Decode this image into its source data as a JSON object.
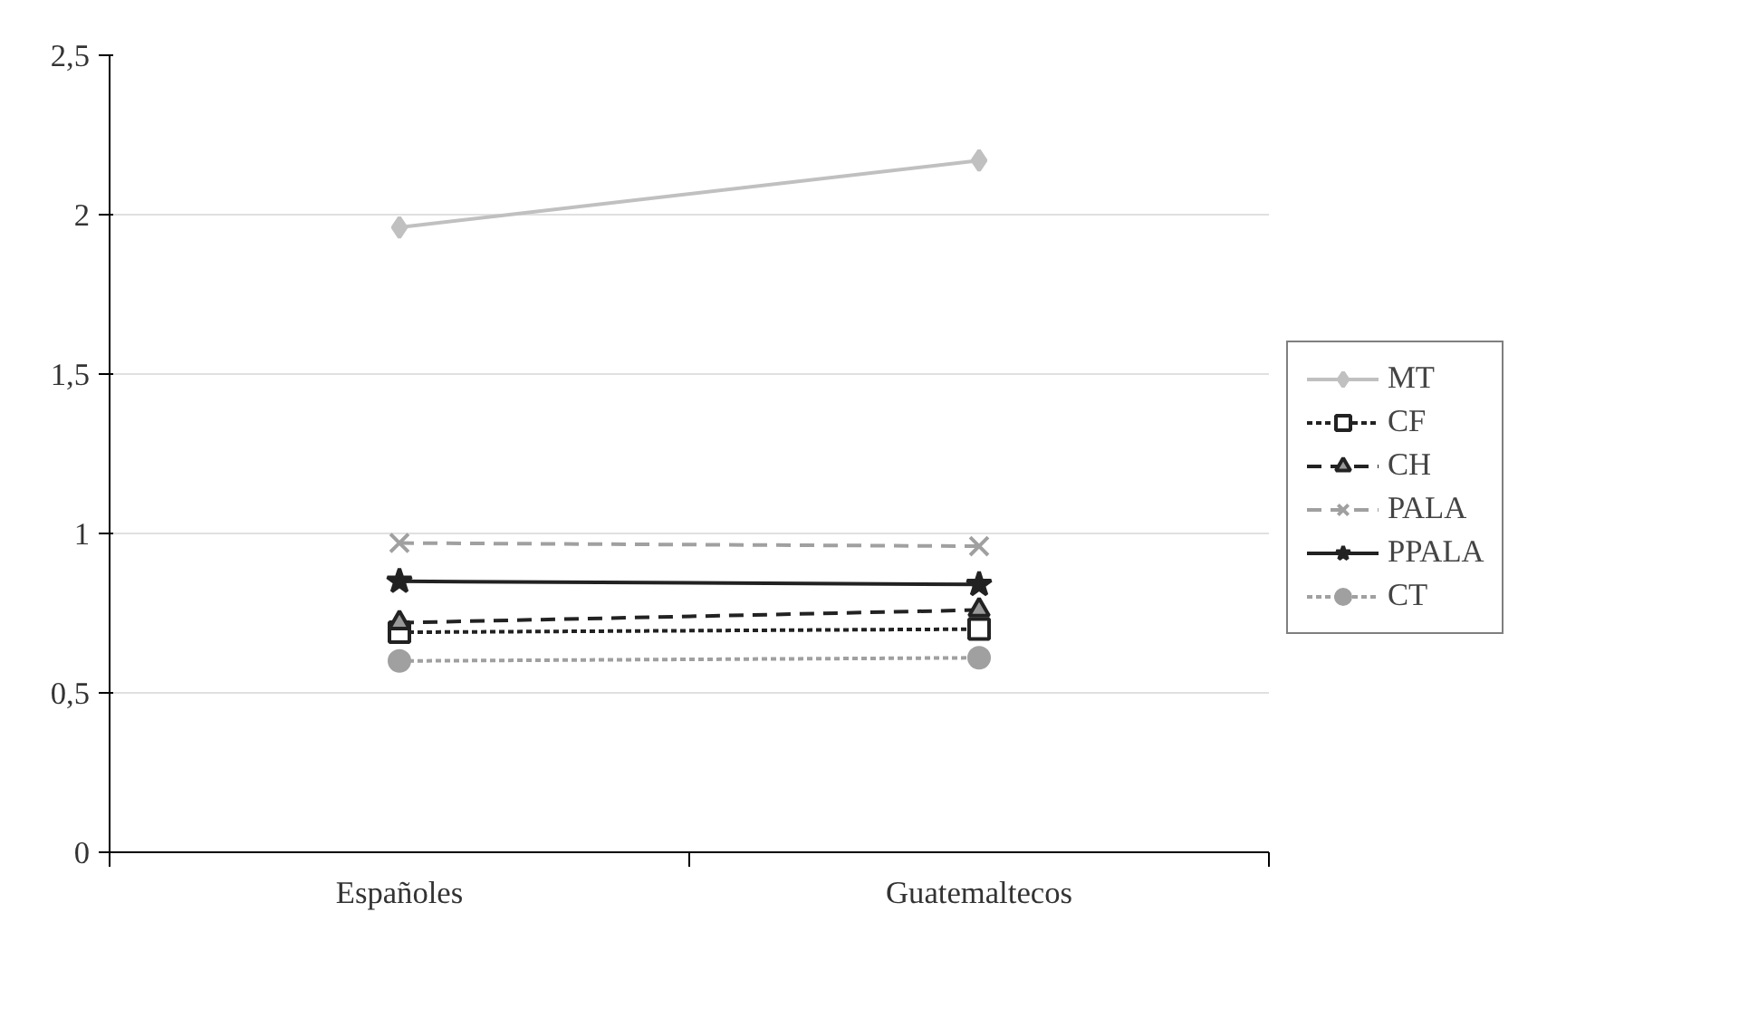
{
  "chart_data": {
    "type": "line",
    "categories": [
      "Españoles",
      "Guatemaltecos"
    ],
    "ylim": [
      0,
      2.5
    ],
    "yticks": [
      0,
      {
        "value": 0.5,
        "label": "0,5"
      },
      1,
      {
        "value": 1.5,
        "label": "1,5"
      },
      2,
      {
        "value": 2.5,
        "label": "2,5"
      }
    ],
    "grid": "y",
    "legend": "right",
    "series": [
      {
        "name": "MT",
        "color": "#c0c0c0",
        "values": [
          1.96,
          2.17
        ],
        "marker": "diamond",
        "line_style": "solid"
      },
      {
        "name": "CF",
        "color": "#222222",
        "values": [
          0.69,
          0.7
        ],
        "marker": "square",
        "line_style": "dotted"
      },
      {
        "name": "CH",
        "color": "#222222",
        "values": [
          0.72,
          0.76
        ],
        "marker": "triangle",
        "line_style": "dashed"
      },
      {
        "name": "PALA",
        "color": "#a0a0a0",
        "values": [
          0.97,
          0.96
        ],
        "marker": "cross",
        "line_style": "dashed"
      },
      {
        "name": "PPALA",
        "color": "#222222",
        "values": [
          0.85,
          0.84
        ],
        "marker": "star",
        "line_style": "solid"
      },
      {
        "name": "CT",
        "color": "#a0a0a0",
        "values": [
          0.6,
          0.61
        ],
        "marker": "circle",
        "line_style": "dotted"
      }
    ]
  }
}
